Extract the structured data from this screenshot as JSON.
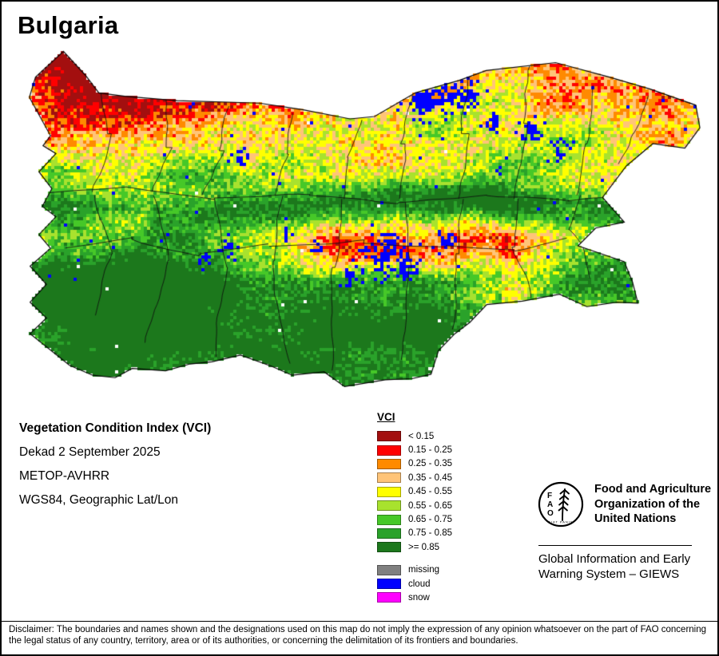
{
  "title": "Bulgaria",
  "info": {
    "index_name": "Vegetation Condition Index (VCI)",
    "dekad": "Dekad 2 September 2025",
    "sensor": "METOP-AVHRR",
    "projection": "WGS84, Geographic Lat/Lon"
  },
  "legend": {
    "title": "VCI",
    "classes": [
      {
        "label": "< 0.15",
        "color": "#a30f0f"
      },
      {
        "label": "0.15 - 0.25",
        "color": "#ff0000"
      },
      {
        "label": "0.25 - 0.35",
        "color": "#ff8a00"
      },
      {
        "label": "0.35 - 0.45",
        "color": "#ffc478"
      },
      {
        "label": "0.45 - 0.55",
        "color": "#ffff00"
      },
      {
        "label": "0.55 - 0.65",
        "color": "#a8e22e"
      },
      {
        "label": "0.65 - 0.75",
        "color": "#46c828"
      },
      {
        "label": "0.75 - 0.85",
        "color": "#2aa22a"
      },
      {
        "label": ">= 0.85",
        "color": "#1c781c"
      }
    ],
    "extras": [
      {
        "label": "missing",
        "color": "#808080"
      },
      {
        "label": "cloud",
        "color": "#0000ff"
      },
      {
        "label": "snow",
        "color": "#ff00ff"
      }
    ]
  },
  "fao": {
    "logo_letters": [
      "F",
      "A",
      "O"
    ],
    "logo_motto": "FIAT PANIS",
    "org_name": "Food and Agriculture Organization of the United Nations",
    "giews": "Global Information and Early Warning System – GIEWS"
  },
  "disclaimer": "Disclaimer: The boundaries and names shown and the designations used on this map do not imply the expression of any opinion whatsoever on the part of FAO concerning the legal status of any country, territory, area or of its authorities, or concerning the delimitation of its frontiers and boundaries."
}
